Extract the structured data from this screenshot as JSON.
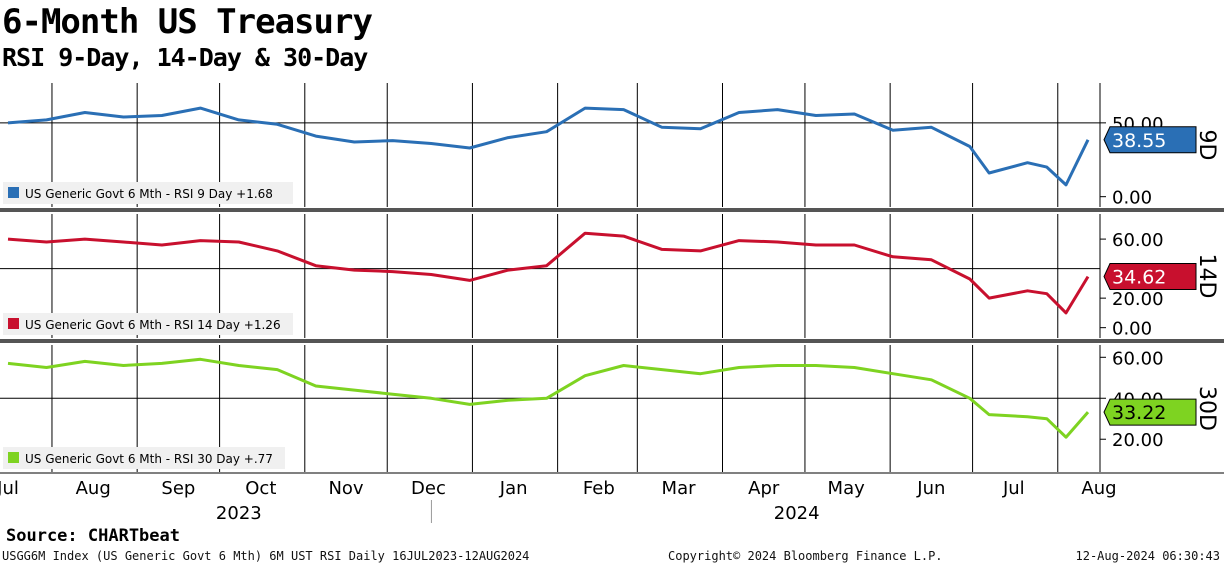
{
  "header": {
    "title": "6-Month US Treasury",
    "subtitle": "RSI 9-Day, 14-Day & 30-Day"
  },
  "footer": {
    "source": "Source: CHARTbeat",
    "left": "USGG6M Index (US Generic Govt 6 Mth) 6M UST RSI  Daily 16JUL2023-12AUG2024",
    "center": "Copyright© 2024 Bloomberg Finance L.P.",
    "right": "12-Aug-2024 06:30:43"
  },
  "chart_data": {
    "type": "line",
    "x_range": [
      "2023-07-16",
      "2024-08-12"
    ],
    "x_months": [
      {
        "label": "Jul",
        "date": "2023-07-16"
      },
      {
        "label": "Aug",
        "date": "2023-08-16"
      },
      {
        "label": "Sep",
        "date": "2023-09-16"
      },
      {
        "label": "Oct",
        "date": "2023-10-16"
      },
      {
        "label": "Nov",
        "date": "2023-11-16"
      },
      {
        "label": "Dec",
        "date": "2023-12-16"
      },
      {
        "label": "Jan",
        "date": "2024-01-16"
      },
      {
        "label": "Feb",
        "date": "2024-02-16"
      },
      {
        "label": "Mar",
        "date": "2024-03-16"
      },
      {
        "label": "Apr",
        "date": "2024-04-16"
      },
      {
        "label": "May",
        "date": "2024-05-16"
      },
      {
        "label": "Jun",
        "date": "2024-06-16"
      },
      {
        "label": "Jul",
        "date": "2024-07-16"
      },
      {
        "label": "Aug",
        "date": "2024-08-16"
      }
    ],
    "x_gridlines": [
      "2023-08-01",
      "2023-09-01",
      "2023-10-01",
      "2023-11-01",
      "2023-12-01",
      "2024-01-01",
      "2024-02-01",
      "2024-03-01",
      "2024-04-01",
      "2024-05-01",
      "2024-06-01",
      "2024-07-01",
      "2024-08-01"
    ],
    "x_years": [
      {
        "label": "2023",
        "date": "2023-10-08"
      },
      {
        "label": "2024",
        "date": "2024-04-28"
      }
    ],
    "year_divider": "2024-01-01",
    "panels": [
      {
        "label": "9D",
        "legend": "US Generic Govt 6 Mth - RSI 9 Day +1.68",
        "color": "#2a6fb5",
        "last_value": "38.55",
        "last": 38.55,
        "ylim": [
          -7,
          77
        ],
        "yticks": [
          {
            "v": 0,
            "label": "0.00"
          },
          {
            "v": 50,
            "label": "50.00"
          }
        ],
        "refline": 50,
        "series": [
          [
            "2023-07-16",
            50
          ],
          [
            "2023-07-30",
            52
          ],
          [
            "2023-08-13",
            57
          ],
          [
            "2023-08-27",
            54
          ],
          [
            "2023-09-10",
            55
          ],
          [
            "2023-09-24",
            60
          ],
          [
            "2023-10-08",
            52
          ],
          [
            "2023-10-22",
            49
          ],
          [
            "2023-11-05",
            41
          ],
          [
            "2023-11-19",
            37
          ],
          [
            "2023-12-03",
            38
          ],
          [
            "2023-12-17",
            36
          ],
          [
            "2023-12-31",
            33
          ],
          [
            "2024-01-14",
            40
          ],
          [
            "2024-01-28",
            44
          ],
          [
            "2024-02-11",
            60
          ],
          [
            "2024-02-25",
            59
          ],
          [
            "2024-03-10",
            47
          ],
          [
            "2024-03-24",
            46
          ],
          [
            "2024-04-07",
            57
          ],
          [
            "2024-04-21",
            59
          ],
          [
            "2024-05-05",
            55
          ],
          [
            "2024-05-19",
            56
          ],
          [
            "2024-06-02",
            45
          ],
          [
            "2024-06-16",
            47
          ],
          [
            "2024-06-30",
            34
          ],
          [
            "2024-07-07",
            16
          ],
          [
            "2024-07-21",
            23
          ],
          [
            "2024-07-28",
            20
          ],
          [
            "2024-08-04",
            8
          ],
          [
            "2024-08-12",
            38.55
          ]
        ]
      },
      {
        "label": "14D",
        "legend": "US Generic Govt 6 Mth - RSI 14 Day +1.26",
        "color": "#c8102e",
        "last_value": "34.62",
        "last": 34.62,
        "ylim": [
          -7,
          77
        ],
        "yticks": [
          {
            "v": 0,
            "label": "0.00"
          },
          {
            "v": 20,
            "label": "20.00"
          },
          {
            "v": 60,
            "label": "60.00"
          }
        ],
        "refline": 40,
        "series": [
          [
            "2023-07-16",
            60
          ],
          [
            "2023-07-30",
            58
          ],
          [
            "2023-08-13",
            60
          ],
          [
            "2023-08-27",
            58
          ],
          [
            "2023-09-10",
            56
          ],
          [
            "2023-09-24",
            59
          ],
          [
            "2023-10-08",
            58
          ],
          [
            "2023-10-22",
            52
          ],
          [
            "2023-11-05",
            42
          ],
          [
            "2023-11-19",
            39
          ],
          [
            "2023-12-03",
            38
          ],
          [
            "2023-12-17",
            36
          ],
          [
            "2023-12-31",
            32
          ],
          [
            "2024-01-14",
            39
          ],
          [
            "2024-01-28",
            42
          ],
          [
            "2024-02-11",
            64
          ],
          [
            "2024-02-25",
            62
          ],
          [
            "2024-03-10",
            53
          ],
          [
            "2024-03-24",
            52
          ],
          [
            "2024-04-07",
            59
          ],
          [
            "2024-04-21",
            58
          ],
          [
            "2024-05-05",
            56
          ],
          [
            "2024-05-19",
            56
          ],
          [
            "2024-06-02",
            48
          ],
          [
            "2024-06-16",
            46
          ],
          [
            "2024-06-30",
            33
          ],
          [
            "2024-07-07",
            20
          ],
          [
            "2024-07-21",
            25
          ],
          [
            "2024-07-28",
            23
          ],
          [
            "2024-08-04",
            10
          ],
          [
            "2024-08-12",
            34.62
          ]
        ]
      },
      {
        "label": "30D",
        "legend": "US Generic Govt 6 Mth - RSI 30 Day +.77",
        "color": "#7ed321",
        "last_value": "33.22",
        "last": 33.22,
        "ylim": [
          4,
          66
        ],
        "yticks": [
          {
            "v": 20,
            "label": "20.00"
          },
          {
            "v": 40,
            "label": "40.00"
          },
          {
            "v": 60,
            "label": "60.00"
          }
        ],
        "refline": 40,
        "series": [
          [
            "2023-07-16",
            57
          ],
          [
            "2023-07-30",
            55
          ],
          [
            "2023-08-13",
            58
          ],
          [
            "2023-08-27",
            56
          ],
          [
            "2023-09-10",
            57
          ],
          [
            "2023-09-24",
            59
          ],
          [
            "2023-10-08",
            56
          ],
          [
            "2023-10-22",
            54
          ],
          [
            "2023-11-05",
            46
          ],
          [
            "2023-11-19",
            44
          ],
          [
            "2023-12-03",
            42
          ],
          [
            "2023-12-17",
            40
          ],
          [
            "2023-12-31",
            37
          ],
          [
            "2024-01-14",
            39
          ],
          [
            "2024-01-28",
            40
          ],
          [
            "2024-02-11",
            51
          ],
          [
            "2024-02-25",
            56
          ],
          [
            "2024-03-10",
            54
          ],
          [
            "2024-03-24",
            52
          ],
          [
            "2024-04-07",
            55
          ],
          [
            "2024-04-21",
            56
          ],
          [
            "2024-05-05",
            56
          ],
          [
            "2024-05-19",
            55
          ],
          [
            "2024-06-02",
            52
          ],
          [
            "2024-06-16",
            49
          ],
          [
            "2024-06-30",
            40
          ],
          [
            "2024-07-07",
            32
          ],
          [
            "2024-07-21",
            31
          ],
          [
            "2024-07-28",
            30
          ],
          [
            "2024-08-04",
            21
          ],
          [
            "2024-08-12",
            33.22
          ]
        ]
      }
    ]
  }
}
